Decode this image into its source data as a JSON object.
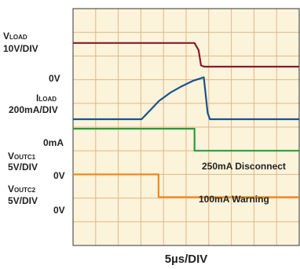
{
  "chart_data": {
    "type": "line",
    "title": "",
    "xlabel": "5µs/DIV",
    "ylabel": "",
    "grid": true,
    "x_divisions": 10,
    "y_divisions": 10,
    "channels": [
      {
        "name_main": "V",
        "name_sub": "LOAD",
        "scale": "10V/DIV",
        "zero_label": "0V",
        "color": "#8b1a2b",
        "points": [
          [
            0,
            8.55
          ],
          [
            5.37,
            8.55
          ],
          [
            5.55,
            8.25
          ],
          [
            5.66,
            7.6
          ],
          [
            5.8,
            7.55
          ],
          [
            10,
            7.55
          ]
        ]
      },
      {
        "name_main": "I",
        "name_sub": "LOAD",
        "scale": "200mA/DIV",
        "zero_label": "0mA",
        "color": "#1a5389",
        "points": [
          [
            0,
            5.33
          ],
          [
            3.03,
            5.33
          ],
          [
            3.4,
            5.7
          ],
          [
            3.8,
            6.1
          ],
          [
            4.3,
            6.45
          ],
          [
            4.8,
            6.72
          ],
          [
            5.3,
            6.95
          ],
          [
            5.78,
            7.1
          ],
          [
            5.95,
            5.6
          ],
          [
            6.05,
            5.33
          ],
          [
            10,
            5.33
          ]
        ]
      },
      {
        "name_main": "V",
        "name_sub": "OUTC1",
        "scale": "5V/DIV",
        "zero_label": "0V",
        "color": "#2c9a3e",
        "points": [
          [
            0,
            4.93
          ],
          [
            5.37,
            4.93
          ],
          [
            5.37,
            4.0
          ],
          [
            10,
            4.0
          ]
        ]
      },
      {
        "name_main": "V",
        "name_sub": "OUTC2",
        "scale": "5V/DIV",
        "zero_label": "0V",
        "color": "#f0891f",
        "points": [
          [
            0,
            3.0
          ],
          [
            3.78,
            3.0
          ],
          [
            3.78,
            2.04
          ],
          [
            10,
            2.04
          ]
        ]
      }
    ],
    "annotations": [
      "250mA Disconnect",
      "100mA Warning"
    ]
  },
  "colors": {
    "plot_bg": "#fbf3da",
    "grid": "#ddb98a",
    "frame": "#333333"
  }
}
